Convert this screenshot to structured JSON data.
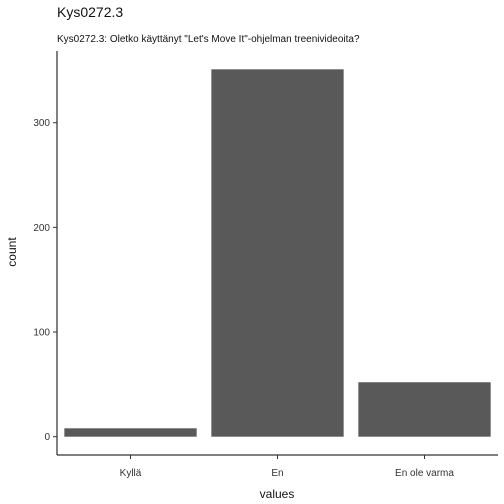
{
  "chart_data": {
    "type": "bar",
    "title": "Kys0272.3",
    "subtitle": "Kys0272.3: Oletko käyttänyt \"Let's Move It\"-ohjelman treenivideoita?",
    "xlabel": "values",
    "ylabel": "count",
    "categories": [
      "Kyllä",
      "En",
      "En ole varma"
    ],
    "values": [
      8,
      351,
      52
    ],
    "ylim": [
      -17.5,
      368.5
    ],
    "yticks": [
      0,
      100,
      200,
      300
    ],
    "bar_color": "#595959",
    "axis_color": "#000000",
    "grid": false,
    "legend": "none"
  }
}
